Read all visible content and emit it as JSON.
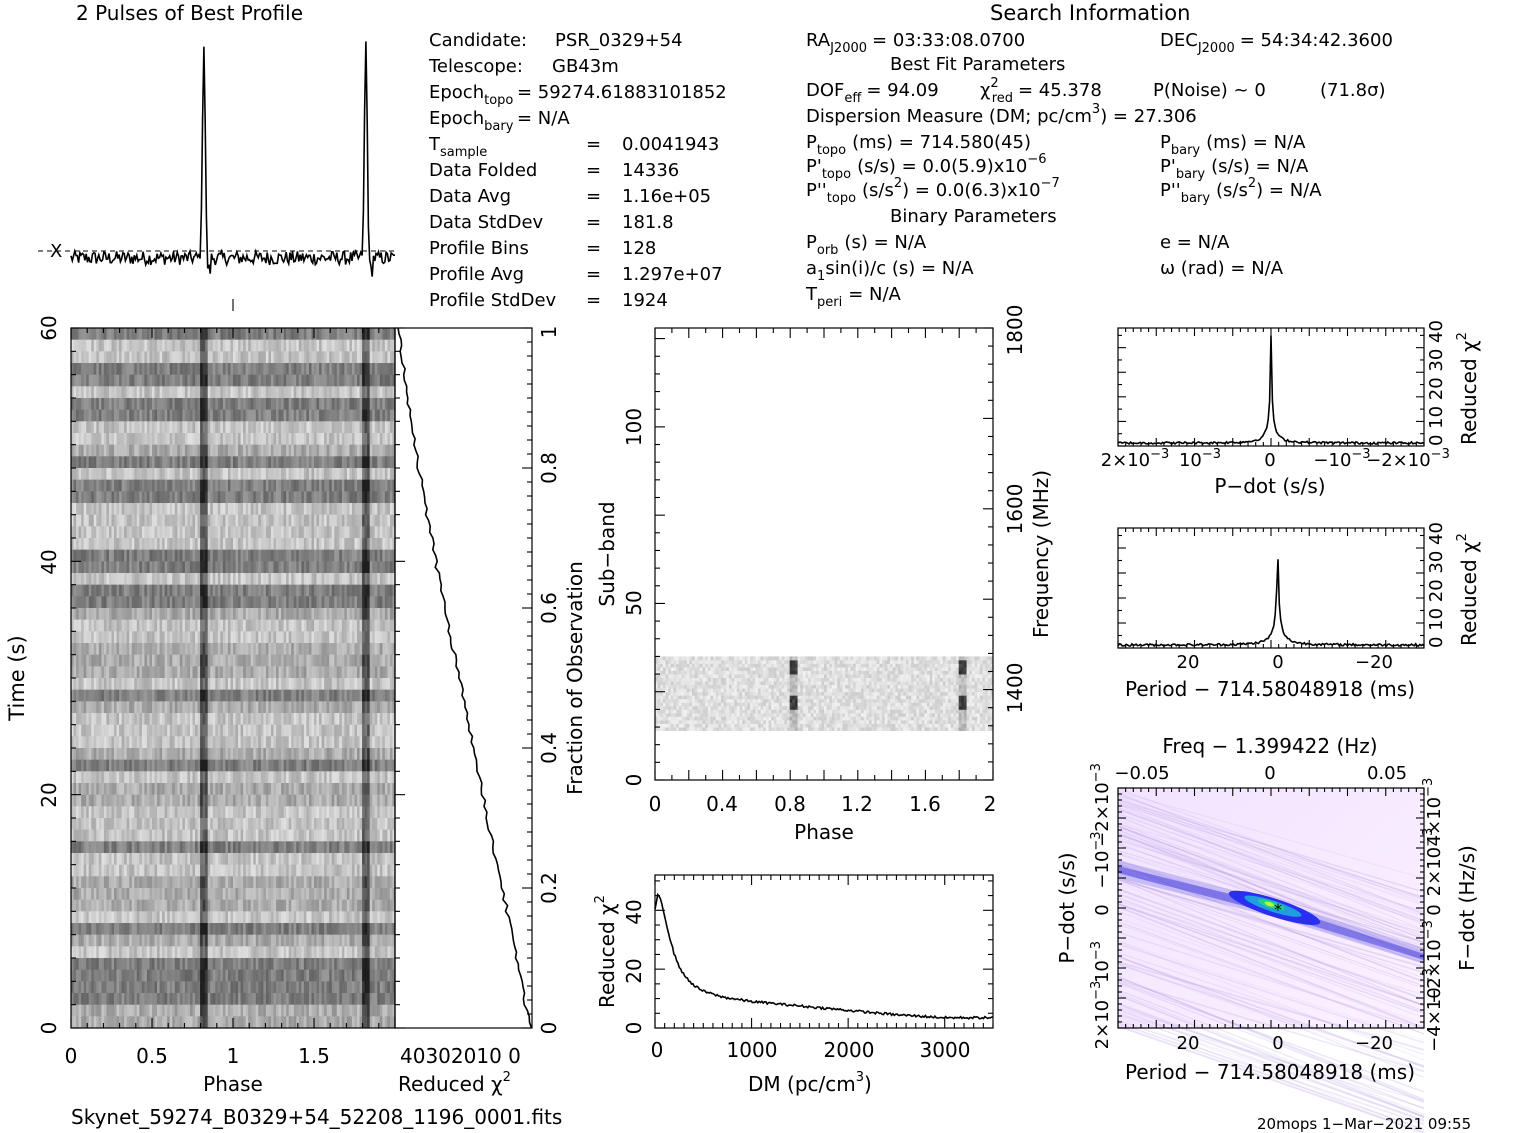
{
  "profile": {
    "title": "2 Pulses of Best Profile",
    "peak_phases": [
      0.82,
      1.82
    ],
    "baseline_marker": "X"
  },
  "search_info": {
    "title": "Search Information",
    "left_rows": [
      {
        "name": "Candidate:",
        "value": "PSR_0329+54"
      },
      {
        "name": "Telescope:",
        "value": "GB43m"
      },
      {
        "name": "Epoch",
        "sub": "topo",
        "value": "= 59274.61883101852"
      },
      {
        "name": "Epoch",
        "sub": "bary",
        "value": "= N/A"
      },
      {
        "name": "T",
        "sub": "sample",
        "eq": "=",
        "value": "0.0041943"
      },
      {
        "name": "Data Folded",
        "eq": "=",
        "value": "14336"
      },
      {
        "name": "Data Avg",
        "eq": "=",
        "value": "1.16e+05"
      },
      {
        "name": "Data StdDev",
        "eq": "=",
        "value": "181.8"
      },
      {
        "name": "Profile Bins",
        "eq": "=",
        "value": "128"
      },
      {
        "name": "Profile Avg",
        "eq": "=",
        "value": "1.297e+07"
      },
      {
        "name": "Profile StdDev",
        "eq": "=",
        "value": "1924"
      }
    ],
    "ra_label": "RA",
    "ra_sub": "J2000",
    "ra_value": "= 03:33:08.0700",
    "dec_label": "DEC",
    "dec_sub": "J2000",
    "dec_value": "= 54:34:42.3600",
    "best_fit_title": "Best Fit Parameters",
    "dof_label": "DOF",
    "dof_sub": "eff",
    "dof_value": "= 94.09",
    "chi_label": "χ",
    "chi_sup": "2",
    "chi_sub": "red",
    "chi_value": "= 45.378",
    "pnoise": "P(Noise) ~ 0",
    "sigma": "(71.8σ)",
    "dm_text": "Dispersion Measure (DM; pc/cm",
    "dm_sup": "3",
    "dm_value": ") = 27.306",
    "ptopo_label": "P",
    "ptopo_sub": "topo",
    "ptopo_value": "(ms) =  714.580(45)",
    "pbary_label": "P",
    "pbary_sub": "bary",
    "pbary_value": "(ms) = N/A",
    "pdtopo_label": "P'",
    "pdtopo_sub": "topo",
    "pdtopo_value": "(s/s) = 0.0(5.9)x10",
    "pdtopo_exp": "−6",
    "pdbary_label": "P'",
    "pdbary_sub": "bary",
    "pdbary_value": "(s/s) = N/A",
    "pddtopo_label": "P''",
    "pddtopo_sub": "topo",
    "pddtopo_value": "(s/s",
    "pddtopo_sup": "2",
    "pddtopo_value2": ") = 0.0(6.3)x10",
    "pddtopo_exp": "−7",
    "pddbary_label": "P''",
    "pddbary_sub": "bary",
    "pddbary_value": "(s/s",
    "pddbary_sup": "2",
    "pddbary_value2": ") = N/A",
    "binary_title": "Binary Parameters",
    "porb_label": "P",
    "porb_sub": "orb",
    "porb_value": "(s) = N/A",
    "ecc": "e = N/A",
    "a1_label": "a",
    "a1_sub": "1",
    "a1_value": "sin(i)/c (s) = N/A",
    "omega": "ω (rad) = N/A",
    "tperi_label": "T",
    "tperi_sub": "peri",
    "tperi_value": "= N/A"
  },
  "labels": {
    "time_axis": "Time (s)",
    "phase": "Phase",
    "reduced_chi": "Reduced χ",
    "chi_sup": "2",
    "fraction_obs": "Fraction of Observation",
    "subband": "Sub−band",
    "frequency": "Frequency (MHz)",
    "dm_axis": "DM (pc/cm",
    "dm_axis_sup": "3",
    "dm_axis_end": ")",
    "pdot_axis": "P−dot (s/s)",
    "period_axis": "Period − 714.58048918 (ms)",
    "freq_axis": "Freq − 1.399422 (Hz)",
    "pdot_yaxis": "P−dot (s/s)",
    "fdot_yaxis": "F−dot (Hz/s)",
    "filename": "Skynet_59274_B0329+54_52208_1196_0001.fits",
    "footer": "20mops   1−Mar−2021 09:55"
  },
  "ticks": {
    "time_y": [
      "0",
      "20",
      "40",
      "60"
    ],
    "phase_x": [
      "0",
      "0.5",
      "1",
      "1.5"
    ],
    "redchi_x": "40302010 0",
    "fraction_y": [
      "0",
      "0.2",
      "0.4",
      "0.6",
      "0.8",
      "1"
    ],
    "subband_y": [
      "0",
      "50",
      "100"
    ],
    "subband_x": [
      "0",
      "0.4",
      "0.8",
      "1.2",
      "1.6",
      "2"
    ],
    "freq_y": [
      "1400",
      "1600",
      "1800"
    ],
    "dm_x": [
      "0",
      "1000",
      "2000",
      "3000"
    ],
    "dm_y": [
      "0",
      "20",
      "40"
    ],
    "pdot_x": [
      "2×10",
      "10",
      "0",
      "−10",
      "−2×10"
    ],
    "pdot_x_exp": "−3",
    "redchi_small_y": "0 10 20 30 40",
    "period_x": [
      "20",
      "0",
      "−20"
    ],
    "freq_x": [
      "−0.05",
      "0",
      "0.05"
    ],
    "pp_left_y": [
      "2×10",
      "10",
      "0",
      "−10",
      "−2×10"
    ],
    "pp_left_exp": "−3",
    "pp_right_y": [
      "−4×10",
      "−2×10",
      "0",
      "2×10",
      "4×10"
    ],
    "pp_right_exp": "−3"
  },
  "chart_data": [
    {
      "type": "line",
      "name": "profile",
      "title": "2 Pulses of Best Profile",
      "xlabel": "",
      "ylabel": "",
      "x_range": [
        0,
        2
      ],
      "peaks": [
        {
          "phase": 0.82
        },
        {
          "phase": 1.82
        }
      ]
    },
    {
      "type": "heatmap",
      "name": "time-phase",
      "xlabel": "Phase",
      "ylabel": "Time (s)",
      "xlim": [
        0,
        2
      ],
      "ylim": [
        0,
        60
      ],
      "pulse_phases": [
        0.82,
        1.82
      ]
    },
    {
      "type": "line",
      "name": "reduced-chi2-vs-fraction",
      "xlabel": "Reduced χ2",
      "ylabel": "Fraction of Observation",
      "xlim": [
        46,
        0
      ],
      "ylim": [
        0,
        1
      ],
      "x": [
        0,
        1,
        2,
        3,
        5,
        8,
        11,
        14,
        17,
        20,
        23,
        26,
        29,
        32,
        35,
        38,
        41,
        43,
        45
      ],
      "y": [
        0.0,
        0.01,
        0.03,
        0.06,
        0.1,
        0.16,
        0.22,
        0.28,
        0.34,
        0.41,
        0.47,
        0.53,
        0.6,
        0.66,
        0.73,
        0.8,
        0.88,
        0.94,
        1.0
      ]
    },
    {
      "type": "heatmap",
      "name": "subband-phase",
      "xlabel": "Phase",
      "ylabel": "Sub−band",
      "xlim": [
        0,
        2
      ],
      "ylim": [
        0,
        128
      ],
      "y2label": "Frequency (MHz)",
      "occupied_subbands": [
        14,
        35
      ],
      "pulse_phases": [
        0.82,
        1.82
      ]
    },
    {
      "type": "line",
      "name": "dm-curve",
      "xlabel": "DM (pc/cm3)",
      "ylabel": "Reduced χ2",
      "xlim": [
        0,
        3500
      ],
      "ylim": [
        0,
        52
      ],
      "x": [
        0,
        27,
        60,
        100,
        150,
        200,
        250,
        300,
        400,
        500,
        700,
        1000,
        1500,
        2000,
        2500,
        3000,
        3500
      ],
      "y": [
        40,
        45.4,
        44,
        38,
        31,
        25,
        21,
        18,
        14.5,
        12.5,
        10.5,
        9,
        7.5,
        6,
        4.5,
        3.5,
        3.5
      ]
    },
    {
      "type": "line",
      "name": "pdot-curve",
      "xlabel": "P−dot (s/s)",
      "ylabel": "Reduced χ2",
      "xlim": [
        0.0021,
        -0.0021
      ],
      "ylim": [
        0,
        48
      ],
      "x": [
        0.0021,
        0.001,
        0.0005,
        0.0002,
        0.0001,
        5e-05,
        0,
        -5e-05,
        -0.0001,
        -0.0002,
        -0.0005,
        -0.001,
        -0.0021
      ],
      "y": [
        1.5,
        2,
        3,
        6,
        12,
        22,
        45.4,
        22,
        12,
        6,
        3,
        2,
        1.5
      ]
    },
    {
      "type": "line",
      "name": "period-curve",
      "xlabel": "Period − 714.58048918 (ms)",
      "ylabel": "Reduced χ2",
      "xlim": [
        36,
        -33
      ],
      "ylim": [
        0,
        48
      ],
      "x": [
        36,
        20,
        10,
        5,
        2,
        1,
        0,
        -1,
        -2,
        -5,
        -10,
        -20,
        -33
      ],
      "y": [
        1,
        1.5,
        3,
        6,
        15,
        28,
        45.4,
        28,
        15,
        6,
        3,
        1.5,
        1
      ]
    },
    {
      "type": "heatmap",
      "name": "period-pdot",
      "xlabel": "Period − 714.58048918 (ms)",
      "ylabel": "P−dot (s/s)",
      "x2label": "Freq − 1.399422 (Hz)",
      "y2label": "F−dot (Hz/s)",
      "xlim": [
        36,
        -33
      ],
      "ylim": [
        0.0021,
        -0.0021
      ],
      "best_fit": {
        "x": 0,
        "y": 0
      }
    }
  ]
}
